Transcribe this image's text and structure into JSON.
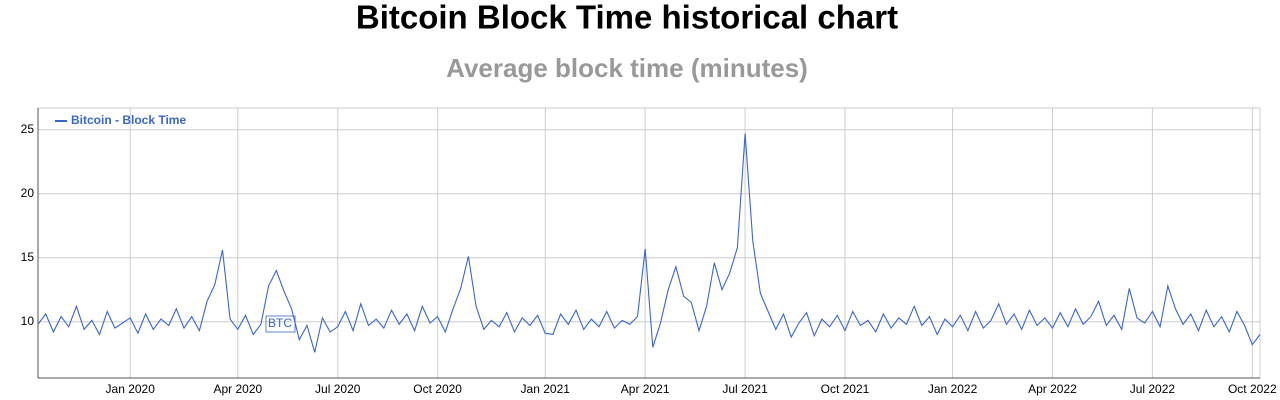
{
  "chart_data": {
    "type": "line",
    "title": "Bitcoin Block Time historical chart",
    "subtitle": "Average block time (minutes)",
    "watermark": "BTC",
    "categories": [
      null,
      null,
      null,
      null,
      null,
      null,
      null,
      null,
      null,
      null,
      null,
      null,
      "Jan 2020",
      null,
      null,
      null,
      null,
      null,
      null,
      null,
      null,
      null,
      null,
      null,
      null,
      null,
      "Apr 2020",
      null,
      null,
      null,
      null,
      null,
      null,
      null,
      null,
      null,
      null,
      null,
      null,
      "Jul 2020",
      null,
      null,
      null,
      null,
      null,
      null,
      null,
      null,
      null,
      null,
      null,
      null,
      "Oct 2020",
      null,
      null,
      null,
      null,
      null,
      null,
      null,
      null,
      null,
      null,
      null,
      null,
      null,
      "Jan 2021",
      null,
      null,
      null,
      null,
      null,
      null,
      null,
      null,
      null,
      null,
      null,
      null,
      "Apr 2021",
      null,
      null,
      null,
      null,
      null,
      null,
      null,
      null,
      null,
      null,
      null,
      null,
      "Jul 2021",
      null,
      null,
      null,
      null,
      null,
      null,
      null,
      null,
      null,
      null,
      null,
      null,
      "Oct 2021",
      null,
      null,
      null,
      null,
      null,
      null,
      null,
      null,
      null,
      null,
      null,
      null,
      null,
      "Jan 2022",
      null,
      null,
      null,
      null,
      null,
      null,
      null,
      null,
      null,
      null,
      null,
      null,
      "Apr 2022",
      null,
      null,
      null,
      null,
      null,
      null,
      null,
      null,
      null,
      null,
      null,
      null,
      "Jul 2022",
      null,
      null,
      null,
      null,
      null,
      null,
      null,
      null,
      null,
      null,
      null,
      null,
      "Oct 2022",
      null
    ],
    "series": [
      {
        "name": "Bitcoin - Block Time",
        "color": "#3a66c8",
        "values": [
          9.8,
          10.6,
          9.2,
          10.4,
          9.6,
          11.2,
          9.4,
          10.1,
          9.0,
          10.8,
          9.5,
          9.9,
          10.3,
          9.1,
          10.6,
          9.4,
          10.2,
          9.7,
          11.0,
          9.5,
          10.4,
          9.3,
          11.6,
          12.9,
          15.6,
          10.2,
          9.4,
          10.5,
          9.0,
          9.8,
          12.8,
          14.0,
          12.4,
          11.0,
          8.6,
          9.7,
          7.6,
          10.3,
          9.2,
          9.6,
          10.8,
          9.3,
          11.4,
          9.7,
          10.2,
          9.5,
          10.9,
          9.8,
          10.6,
          9.3,
          11.2,
          9.9,
          10.4,
          9.2,
          11.0,
          12.6,
          15.1,
          11.2,
          9.4,
          10.1,
          9.6,
          10.7,
          9.2,
          10.3,
          9.7,
          10.5,
          9.1,
          9.0,
          10.6,
          9.8,
          10.9,
          9.4,
          10.2,
          9.6,
          10.8,
          9.5,
          10.1,
          9.8,
          10.4,
          15.7,
          8.0,
          9.9,
          12.5,
          14.3,
          12.0,
          11.5,
          9.3,
          11.2,
          14.6,
          12.5,
          13.8,
          15.8,
          24.7,
          16.3,
          12.2,
          10.8,
          9.4,
          10.6,
          8.8,
          9.9,
          10.7,
          8.9,
          10.2,
          9.6,
          10.5,
          9.3,
          10.8,
          9.7,
          10.1,
          9.2,
          10.6,
          9.5,
          10.3,
          9.8,
          11.2,
          9.7,
          10.4,
          9.0,
          10.2,
          9.6,
          10.5,
          9.3,
          10.8,
          9.5,
          10.1,
          11.4,
          9.8,
          10.6,
          9.4,
          10.9,
          9.7,
          10.3,
          9.5,
          10.7,
          9.6,
          11.0,
          9.8,
          10.4,
          11.6,
          9.7,
          10.5,
          9.4,
          12.6,
          10.3,
          9.9,
          10.8,
          9.6,
          12.8,
          11.0,
          9.8,
          10.6,
          9.3,
          10.9,
          9.6,
          10.4,
          9.2,
          10.8,
          9.7,
          8.2,
          9.0
        ]
      }
    ],
    "ylim": [
      5.6,
      26.7
    ],
    "yticks": [
      10,
      15,
      20,
      25
    ],
    "grid": true,
    "legend": "top-left"
  }
}
